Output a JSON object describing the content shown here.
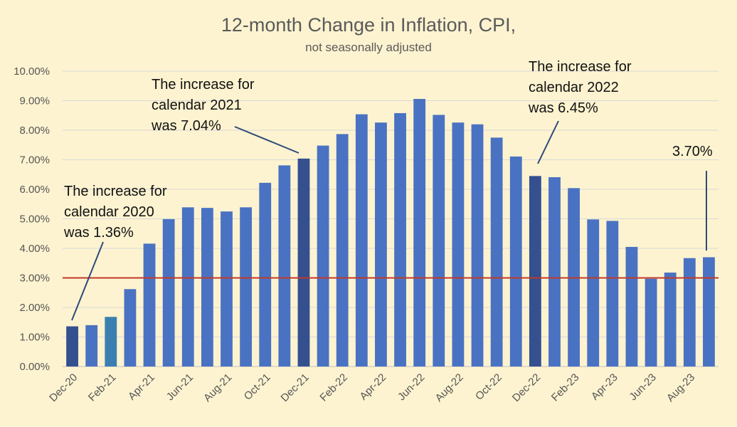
{
  "chart_data": {
    "type": "bar",
    "title": "12-month Change in Inflation, CPI,",
    "subtitle": "not seasonally adjusted",
    "ylim": [
      0,
      10
    ],
    "yticks": [
      "0.00%",
      "1.00%",
      "2.00%",
      "3.00%",
      "4.00%",
      "5.00%",
      "6.00%",
      "7.00%",
      "8.00%",
      "9.00%",
      "10.00%"
    ],
    "grid": true,
    "categories": [
      "Dec-20",
      "Jan-21",
      "Feb-21",
      "Mar-21",
      "Apr-21",
      "May-21",
      "Jun-21",
      "Jul-21",
      "Aug-21",
      "Sep-21",
      "Oct-21",
      "Nov-21",
      "Dec-21",
      "Jan-22",
      "Feb-22",
      "Mar-22",
      "Apr-22",
      "May-22",
      "Jun-22",
      "Jul-22",
      "Aug-22",
      "Sep-22",
      "Oct-22",
      "Nov-22",
      "Dec-22",
      "Jan-23",
      "Feb-23",
      "Mar-23",
      "Apr-23",
      "May-23",
      "Jun-23",
      "Jul-23",
      "Aug-23",
      "Sep-23"
    ],
    "xtick_labels": [
      "Dec-20",
      "Feb-21",
      "Apr-21",
      "Jun-21",
      "Aug-21",
      "Oct-21",
      "Dec-21",
      "Feb-22",
      "Apr-22",
      "Jun-22",
      "Aug-22",
      "Oct-22",
      "Dec-22",
      "Feb-23",
      "Apr-23",
      "Jun-23",
      "Aug-23"
    ],
    "values": [
      1.36,
      1.4,
      1.68,
      2.62,
      4.16,
      4.99,
      5.39,
      5.37,
      5.25,
      5.39,
      6.22,
      6.81,
      7.04,
      7.48,
      7.87,
      8.54,
      8.26,
      8.58,
      9.06,
      8.52,
      8.26,
      8.2,
      7.75,
      7.11,
      6.45,
      6.41,
      6.04,
      4.98,
      4.93,
      4.05,
      2.97,
      3.18,
      3.67,
      3.7
    ],
    "colors": {
      "default": "#4a72c2",
      "highlight": "#34508f",
      "teal": "#3a7fb0",
      "reference_line": "#c0392b"
    },
    "highlight_indices": [
      0,
      12,
      24
    ],
    "teal_indices": [
      2
    ],
    "reference_line_value": 3.0,
    "annotations": [
      {
        "lines": [
          "The increase for",
          "calendar 2020",
          "was 1.36%"
        ],
        "target_index": 0
      },
      {
        "lines": [
          "The increase for",
          "calendar 2021",
          "was 7.04%"
        ],
        "target_index": 12
      },
      {
        "lines": [
          "The increase for",
          "calendar 2022",
          "was 6.45%"
        ],
        "target_index": 24
      },
      {
        "lines": [
          "3.70%"
        ],
        "target_index": 33
      }
    ]
  }
}
